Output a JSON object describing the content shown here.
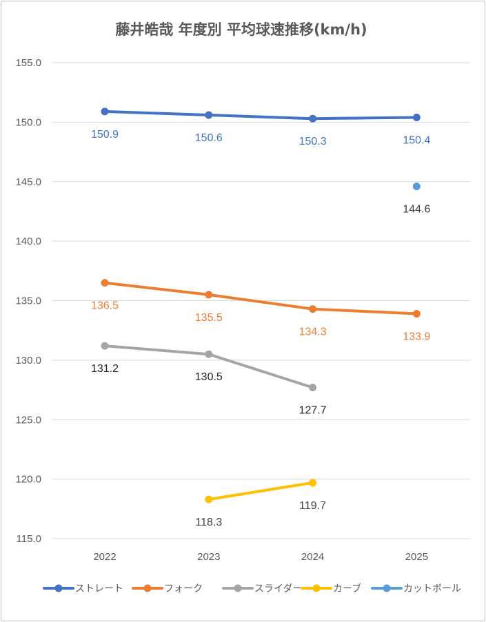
{
  "chart_data": {
    "type": "line",
    "title": "藤井皓哉 年度別 平均球速推移(km/h)",
    "categories": [
      "2022",
      "2023",
      "2024",
      "2025"
    ],
    "ylim": [
      115.0,
      155.0
    ],
    "ytick_step": 5,
    "ytick_labels": [
      "115.0",
      "120.0",
      "125.0",
      "130.0",
      "135.0",
      "140.0",
      "145.0",
      "150.0",
      "155.0"
    ],
    "grid": true,
    "legend_position": "bottom",
    "series": [
      {
        "name": "ストレート",
        "color": "#4472c4",
        "label_color": "#4472c4",
        "values": [
          150.9,
          150.6,
          150.3,
          150.4
        ],
        "labels": [
          "150.9",
          "150.6",
          "150.3",
          "150.4"
        ]
      },
      {
        "name": "フォーク",
        "color": "#ed7d31",
        "label_color": "#ed7d31",
        "values": [
          136.5,
          135.5,
          134.3,
          133.9
        ],
        "labels": [
          "136.5",
          "135.5",
          "134.3",
          "133.9"
        ]
      },
      {
        "name": "スライダー",
        "color": "#a5a5a5",
        "label_color": "#262626",
        "values": [
          131.2,
          130.5,
          127.7,
          null
        ],
        "labels": [
          "131.2",
          "130.5",
          "127.7",
          null
        ]
      },
      {
        "name": "カーブ",
        "color": "#ffc000",
        "label_color": "#404040",
        "values": [
          null,
          118.3,
          119.7,
          null
        ],
        "labels": [
          null,
          "118.3",
          "119.7",
          null
        ]
      },
      {
        "name": "カットボール",
        "color": "#5b9bd5",
        "label_color": "#404040",
        "values": [
          null,
          null,
          null,
          144.6
        ],
        "labels": [
          null,
          null,
          null,
          "144.6"
        ]
      }
    ]
  }
}
